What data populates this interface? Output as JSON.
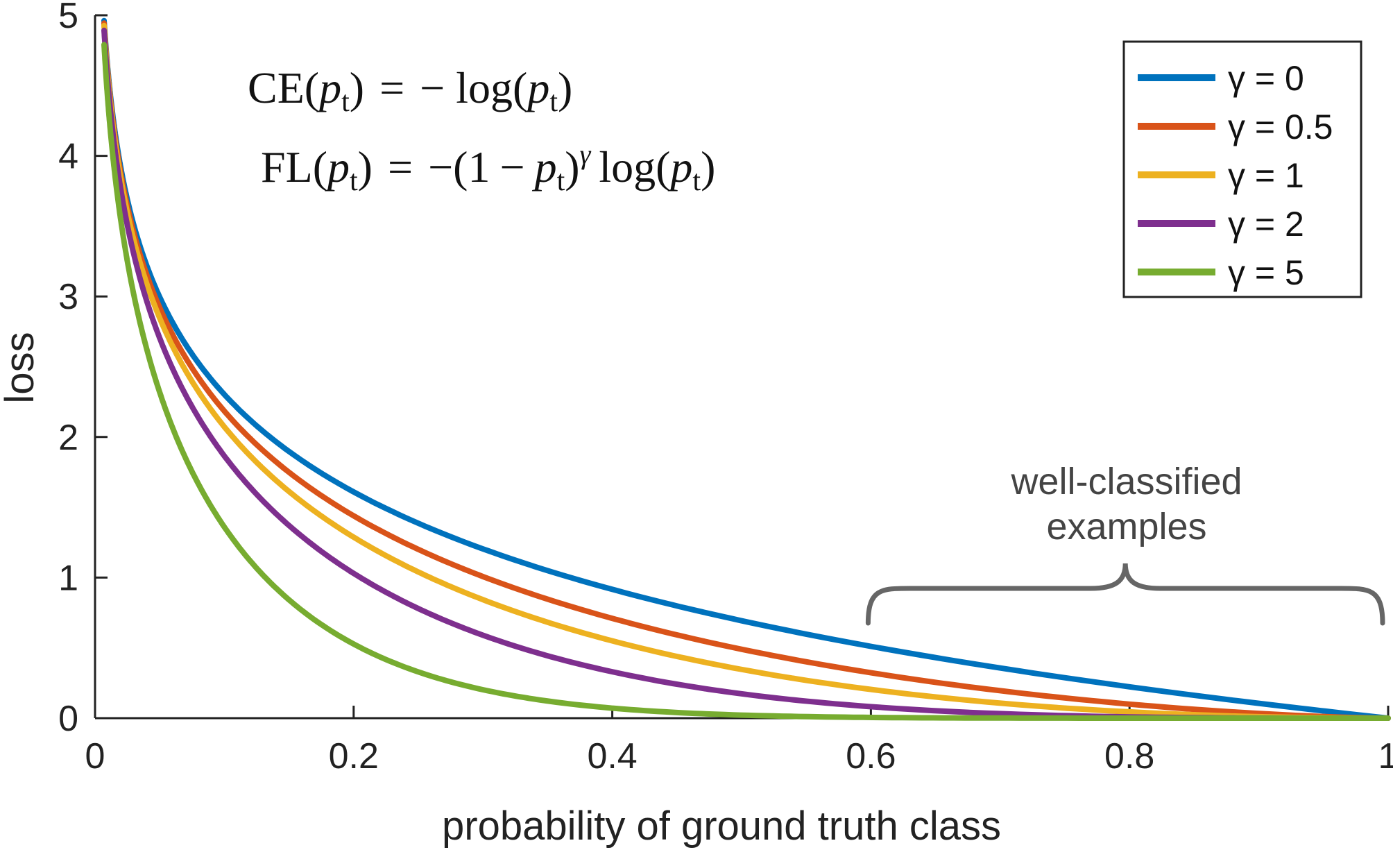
{
  "chart_data": {
    "type": "line",
    "title": "",
    "xlabel": "probability of ground truth class",
    "ylabel": "loss",
    "xlim": [
      0,
      1
    ],
    "ylim": [
      0,
      5
    ],
    "x_ticks": [
      "0",
      "0.2",
      "0.4",
      "0.6",
      "0.8",
      "1"
    ],
    "y_ticks": [
      "0",
      "1",
      "2",
      "3",
      "4",
      "5"
    ],
    "grid": false,
    "legend_position": "top-right",
    "x": [
      0.007,
      0.01,
      0.015,
      0.02,
      0.03,
      0.04,
      0.05,
      0.06,
      0.08,
      0.1,
      0.12,
      0.15,
      0.18,
      0.2,
      0.25,
      0.3,
      0.35,
      0.4,
      0.45,
      0.5,
      0.55,
      0.6,
      0.65,
      0.7,
      0.75,
      0.8,
      0.85,
      0.9,
      0.95,
      1.0
    ],
    "series": [
      {
        "name": "γ = 0",
        "gamma": 0,
        "color": "#0072BD",
        "values": [
          4.96,
          4.61,
          4.2,
          3.91,
          3.51,
          3.22,
          3.0,
          2.81,
          2.53,
          2.3,
          2.12,
          1.9,
          1.71,
          1.61,
          1.39,
          1.2,
          1.05,
          0.92,
          0.8,
          0.69,
          0.6,
          0.51,
          0.43,
          0.36,
          0.29,
          0.22,
          0.16,
          0.11,
          0.05,
          0.0
        ]
      },
      {
        "name": "γ = 0.5",
        "gamma": 0.5,
        "color": "#D95319",
        "values": [
          4.94,
          4.58,
          4.17,
          3.88,
          3.46,
          3.16,
          2.92,
          2.73,
          2.43,
          2.18,
          1.98,
          1.75,
          1.55,
          1.44,
          1.2,
          1.0,
          0.85,
          0.71,
          0.59,
          0.49,
          0.4,
          0.32,
          0.25,
          0.19,
          0.14,
          0.1,
          0.06,
          0.03,
          0.01,
          0.0
        ]
      },
      {
        "name": "γ = 1",
        "gamma": 1,
        "color": "#EDB120",
        "values": [
          4.93,
          4.56,
          4.14,
          3.83,
          3.4,
          3.09,
          2.85,
          2.65,
          2.32,
          2.07,
          1.86,
          1.61,
          1.4,
          1.29,
          1.04,
          0.84,
          0.68,
          0.55,
          0.44,
          0.35,
          0.27,
          0.2,
          0.15,
          0.11,
          0.07,
          0.04,
          0.02,
          0.01,
          0.0,
          0.0
        ]
      },
      {
        "name": "γ = 2",
        "gamma": 2,
        "color": "#7E2F8E",
        "values": [
          4.89,
          4.51,
          4.08,
          3.76,
          3.3,
          2.97,
          2.71,
          2.49,
          2.14,
          1.87,
          1.64,
          1.37,
          1.15,
          1.03,
          0.78,
          0.59,
          0.44,
          0.33,
          0.24,
          0.17,
          0.12,
          0.08,
          0.05,
          0.03,
          0.02,
          0.01,
          0.0,
          0.0,
          0.0,
          0.0
        ]
      },
      {
        "name": "γ = 5",
        "gamma": 5,
        "color": "#77AC30",
        "values": [
          4.79,
          4.39,
          3.89,
          3.53,
          2.99,
          2.62,
          2.32,
          2.07,
          1.67,
          1.36,
          1.11,
          0.84,
          0.64,
          0.53,
          0.33,
          0.2,
          0.12,
          0.07,
          0.04,
          0.02,
          0.01,
          0.01,
          0.0,
          0.0,
          0.0,
          0.0,
          0.0,
          0.0,
          0.0,
          0.0
        ]
      }
    ],
    "annotations": {
      "well_classified_line1": "well-classified",
      "well_classified_line2": "examples",
      "brace_x_range": [
        0.6,
        1.0
      ],
      "brace_color": "#666666"
    },
    "equations": {
      "ce_name": "CE",
      "fl_name": "FL",
      "p": "p",
      "t": "t",
      "gamma": "γ",
      "log": "log",
      "one": "1",
      "eq": "=",
      "minus": "−",
      "lparen": "(",
      "rparen": ")"
    }
  }
}
